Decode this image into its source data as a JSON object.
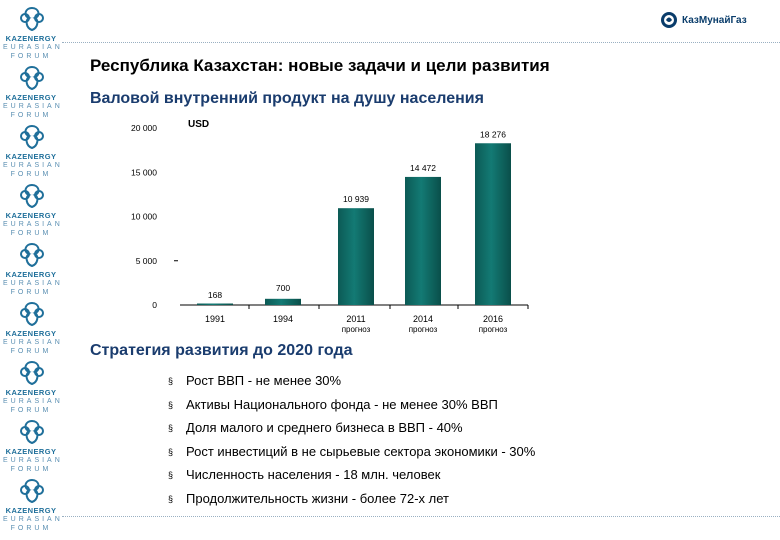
{
  "sidebar": {
    "logo_line1": "KAZENERGY",
    "logo_line2": "EURASIAN",
    "logo_line3": "FORUM",
    "repeat_count": 9,
    "accent": "#1f6f9a"
  },
  "header": {
    "brand_text": "КазМунайГаз",
    "title": "Республика Казахстан: новые задачи и цели развития",
    "subtitle": "Валовой внутренний продукт на душу населения"
  },
  "chart_data": {
    "type": "bar",
    "unit_label": "USD",
    "categories": [
      "1991",
      "1994",
      "2011",
      "2014",
      "2016"
    ],
    "category_notes": [
      "",
      "",
      "прогноз",
      "прогноз",
      "прогноз"
    ],
    "values": [
      168,
      700,
      10939,
      14472,
      18276
    ],
    "value_labels": [
      "168",
      "700",
      "10 939",
      "14 472",
      "18 276"
    ],
    "ytick_values": [
      0,
      5000,
      10000,
      15000,
      20000
    ],
    "ytick_labels": [
      "0",
      "5 000",
      "10 000",
      "15 000",
      "20 000"
    ],
    "ylim": [
      0,
      20000
    ],
    "bar_color": "#137a74",
    "grid": false
  },
  "strategy": {
    "title": "Стратегия развития до 2020 года",
    "bullet_glyph": "§",
    "items": [
      "Рост ВВП - не менее 30%",
      "Активы Национального фонда - не менее 30% ВВП",
      "Доля малого и среднего бизнеса в ВВП - 40%",
      "Рост инвестиций в не сырьевые сектора экономики - 30%",
      "Численность населения - 18 млн. человек",
      "Продолжительность жизни - более 72-х лет"
    ]
  }
}
